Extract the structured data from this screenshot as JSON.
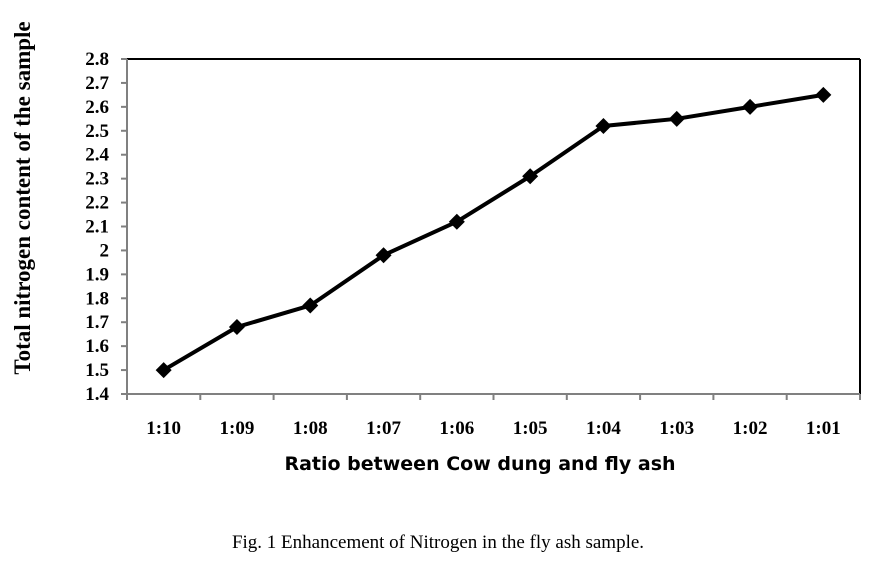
{
  "chart_data": {
    "type": "line",
    "title": "",
    "xlabel": "Ratio between Cow dung and fly ash",
    "ylabel": "Total nitrogen content of the sample",
    "categories": [
      "1:10",
      "1:09",
      "1:08",
      "1:07",
      "1:06",
      "1:05",
      "1:04",
      "1:03",
      "1:02",
      "1:01"
    ],
    "series": [
      {
        "name": "Total nitrogen",
        "values": [
          1.5,
          1.68,
          1.77,
          1.98,
          2.12,
          2.31,
          2.52,
          2.55,
          2.6,
          2.65
        ],
        "color": "#000000",
        "marker": "diamond"
      }
    ],
    "ylim": [
      1.4,
      2.8
    ],
    "yticks": [
      "1.4",
      "1.5",
      "1.6",
      "1.7",
      "1.8",
      "1.9",
      "2",
      "2.1",
      "2.2",
      "2.3",
      "2.4",
      "2.5",
      "2.6",
      "2.7",
      "2.8"
    ],
    "grid": false,
    "legend": "none"
  },
  "caption": "Fig. 1 Enhancement of Nitrogen in the fly ash sample."
}
